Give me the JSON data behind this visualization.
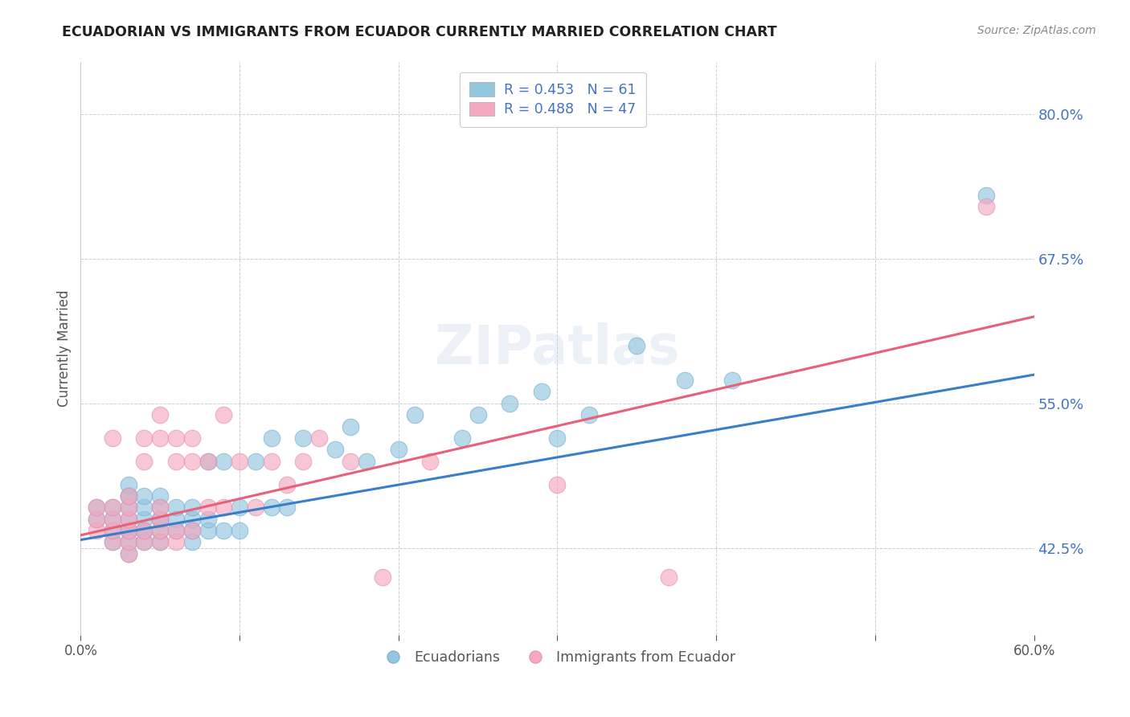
{
  "title": "ECUADORIAN VS IMMIGRANTS FROM ECUADOR CURRENTLY MARRIED CORRELATION CHART",
  "source": "Source: ZipAtlas.com",
  "ylabel_label": "Currently Married",
  "x_min": 0.0,
  "x_max": 0.6,
  "y_min": 0.35,
  "y_max": 0.845,
  "y_ticks": [
    0.425,
    0.55,
    0.675,
    0.8
  ],
  "legend_label1": "Ecuadorians",
  "legend_label2": "Immigrants from Ecuador",
  "color_blue": "#92C5DE",
  "color_pink": "#F4A9C0",
  "line_color_blue": "#3A7DC9",
  "line_color_pink": "#E8607A",
  "watermark": "ZIPatlas",
  "background_color": "#ffffff",
  "grid_color": "#b0b8c8",
  "title_color": "#222222",
  "tick_label_color": "#4472C4",
  "blue_scatter_x": [
    0.01,
    0.01,
    0.02,
    0.02,
    0.02,
    0.02,
    0.03,
    0.03,
    0.03,
    0.03,
    0.03,
    0.03,
    0.03,
    0.03,
    0.03,
    0.04,
    0.04,
    0.04,
    0.04,
    0.04,
    0.04,
    0.05,
    0.05,
    0.05,
    0.05,
    0.05,
    0.05,
    0.06,
    0.06,
    0.06,
    0.07,
    0.07,
    0.07,
    0.07,
    0.08,
    0.08,
    0.08,
    0.09,
    0.09,
    0.1,
    0.1,
    0.11,
    0.12,
    0.12,
    0.13,
    0.14,
    0.16,
    0.17,
    0.18,
    0.2,
    0.21,
    0.24,
    0.25,
    0.27,
    0.29,
    0.3,
    0.32,
    0.35,
    0.38,
    0.41,
    0.57
  ],
  "blue_scatter_y": [
    0.45,
    0.46,
    0.43,
    0.44,
    0.45,
    0.46,
    0.42,
    0.43,
    0.44,
    0.44,
    0.45,
    0.46,
    0.47,
    0.47,
    0.48,
    0.43,
    0.44,
    0.44,
    0.45,
    0.46,
    0.47,
    0.43,
    0.44,
    0.45,
    0.45,
    0.46,
    0.47,
    0.44,
    0.45,
    0.46,
    0.43,
    0.44,
    0.45,
    0.46,
    0.44,
    0.45,
    0.5,
    0.44,
    0.5,
    0.44,
    0.46,
    0.5,
    0.46,
    0.52,
    0.46,
    0.52,
    0.51,
    0.53,
    0.5,
    0.51,
    0.54,
    0.52,
    0.54,
    0.55,
    0.56,
    0.52,
    0.54,
    0.6,
    0.57,
    0.57,
    0.73
  ],
  "pink_scatter_x": [
    0.01,
    0.01,
    0.01,
    0.02,
    0.02,
    0.02,
    0.02,
    0.02,
    0.03,
    0.03,
    0.03,
    0.03,
    0.03,
    0.03,
    0.04,
    0.04,
    0.04,
    0.04,
    0.05,
    0.05,
    0.05,
    0.05,
    0.05,
    0.05,
    0.06,
    0.06,
    0.06,
    0.06,
    0.07,
    0.07,
    0.07,
    0.08,
    0.08,
    0.09,
    0.09,
    0.1,
    0.11,
    0.12,
    0.13,
    0.14,
    0.15,
    0.17,
    0.19,
    0.22,
    0.3,
    0.37,
    0.57
  ],
  "pink_scatter_y": [
    0.44,
    0.45,
    0.46,
    0.43,
    0.44,
    0.45,
    0.46,
    0.52,
    0.42,
    0.43,
    0.44,
    0.45,
    0.46,
    0.47,
    0.43,
    0.44,
    0.5,
    0.52,
    0.43,
    0.44,
    0.45,
    0.46,
    0.52,
    0.54,
    0.43,
    0.44,
    0.5,
    0.52,
    0.44,
    0.5,
    0.52,
    0.46,
    0.5,
    0.46,
    0.54,
    0.5,
    0.46,
    0.5,
    0.48,
    0.5,
    0.52,
    0.5,
    0.4,
    0.5,
    0.48,
    0.4,
    0.72
  ]
}
